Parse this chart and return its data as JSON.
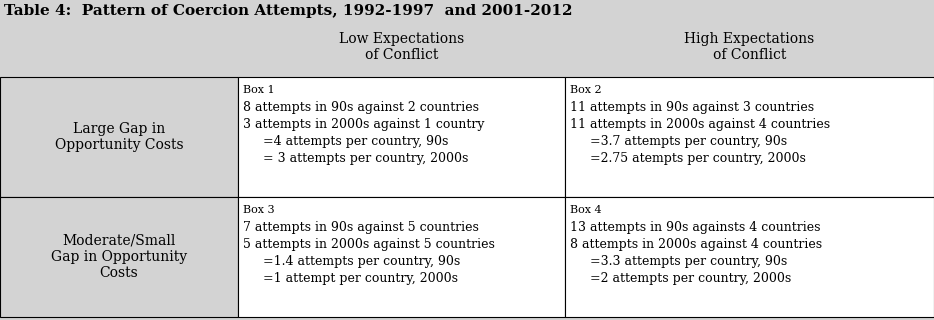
{
  "title": "Table 4:  Pattern of Coercion Attempts, 1992-1997  and 2001-2012",
  "col_headers": [
    "Low Expectations\nof Conflict",
    "High Expectations\nof Conflict"
  ],
  "row_headers": [
    "Large Gap in\nOpportunity Costs",
    "Moderate/Small\nGap in Opportunity\nCosts"
  ],
  "cells": [
    {
      "box_label": "Box 1",
      "lines": [
        "8 attempts in 90s against 2 countries",
        "3 attempts in 2000s against 1 country",
        "     =4 attempts per country, 90s",
        "     = 3 attempts per country, 2000s"
      ]
    },
    {
      "box_label": "Box 2",
      "lines": [
        "11 attempts in 90s against 3 countries",
        "11 attempts in 2000s against 4 countries",
        "     =3.7 attempts per country, 90s",
        "     =2.75 atempts per country, 2000s"
      ]
    },
    {
      "box_label": "Box 3",
      "lines": [
        "7 attempts in 90s against 5 countries",
        "5 attempts in 2000s against 5 countries",
        "     =1.4 attempts per country, 90s",
        "     =1 attempt per country, 2000s"
      ]
    },
    {
      "box_label": "Box 4",
      "lines": [
        "13 attempts in 90s againsts 4 countries",
        "8 attempts in 2000s against 4 countries",
        "     =3.3 attempts per country, 90s",
        "     =2 attempts per country, 2000s"
      ]
    }
  ],
  "bg_color": "#d3d3d3",
  "bg_color_cell": "#ffffff",
  "border_color": "#000000",
  "title_fontsize": 11,
  "header_fontsize": 10,
  "cell_fontsize": 9,
  "row_header_fontsize": 10,
  "fig_width": 9.34,
  "fig_height": 3.2,
  "dpi": 100
}
